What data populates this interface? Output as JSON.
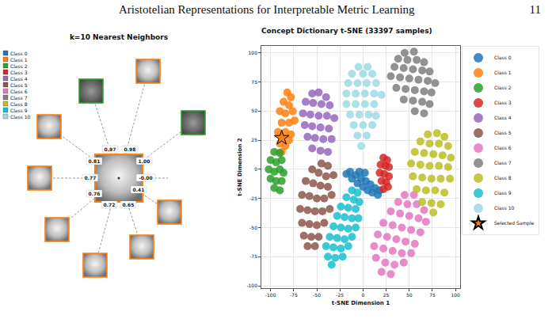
{
  "header": {
    "title": "Aristotelian Representations for Interpretable Metric Learning",
    "page": "11"
  },
  "neighbors_panel": {
    "title": "k=10 Nearest Neighbors",
    "legend": [
      {
        "label": "Class 0",
        "color": "#1f77b4"
      },
      {
        "label": "Class 1",
        "color": "#ff7f0e"
      },
      {
        "label": "Class 2",
        "color": "#2ca02c"
      },
      {
        "label": "Class 3",
        "color": "#d62728"
      },
      {
        "label": "Class 4",
        "color": "#9467bd"
      },
      {
        "label": "Class 5",
        "color": "#8c564b"
      },
      {
        "label": "Class 6",
        "color": "#e377c2"
      },
      {
        "label": "Class 7",
        "color": "#7f7f7f"
      },
      {
        "label": "Class 8",
        "color": "#bcbd22"
      },
      {
        "label": "Class 9",
        "color": "#17becf"
      },
      {
        "label": "Class 10",
        "color": "#9edae5"
      }
    ],
    "query": {
      "class": "Class 1"
    },
    "neighbors": [
      {
        "similarity": "0.97",
        "class": "Class 2"
      },
      {
        "similarity": "0.98",
        "class": "Class 1"
      },
      {
        "similarity": "0.81",
        "class": "Class 1"
      },
      {
        "similarity": "1.00",
        "class": "Class 2"
      },
      {
        "similarity": "0.77",
        "class": "Class 1"
      },
      {
        "similarity": "-0.00"
      },
      {
        "similarity": "0.41",
        "class": "Class 1"
      },
      {
        "similarity": "0.76",
        "class": "Class 1"
      },
      {
        "similarity": "0.72",
        "class": "Class 1"
      },
      {
        "similarity": "0.65",
        "class": "Class 1"
      }
    ]
  },
  "chart_data": {
    "type": "scatter",
    "title": "Concept Dictionary t-SNE (33397 samples)",
    "x_label": "t-SNE Dimension 1",
    "y_label": "t-SNE Dimension 2",
    "xlim": [
      -110,
      105
    ],
    "ylim": [
      -102,
      106
    ],
    "xticks": [
      -100,
      -75,
      -50,
      -25,
      0,
      25,
      50,
      75,
      100
    ],
    "yticks": [
      -100,
      -75,
      -50,
      -25,
      0,
      25,
      50,
      75,
      100
    ],
    "grid": true,
    "legend": "right",
    "series": [
      {
        "name": "Class 0",
        "color": "#1f77b4",
        "x": [
          -18,
          -14,
          -12,
          -8,
          -6,
          -2,
          0,
          3,
          5,
          8,
          10,
          13,
          16,
          18,
          -4,
          2
        ],
        "y": [
          -4,
          -2,
          -8,
          -5,
          -12,
          -8,
          -15,
          -10,
          -18,
          -13,
          -20,
          -16,
          -22,
          -18,
          -2,
          -3
        ]
      },
      {
        "name": "Class 1",
        "color": "#ff7f0e",
        "x": [
          -82,
          -78,
          -86,
          -80,
          -90,
          -84,
          -76,
          -88,
          -80,
          -74,
          -92,
          -84,
          -78,
          -90,
          -84,
          -80,
          -88
        ],
        "y": [
          66,
          62,
          58,
          55,
          50,
          48,
          50,
          40,
          40,
          42,
          32,
          32,
          30,
          22,
          20,
          25,
          15
        ]
      },
      {
        "name": "Class 2",
        "color": "#2ca02c",
        "x": [
          -96,
          -90,
          -100,
          -94,
          -88,
          -102,
          -96,
          -90,
          -86,
          -100,
          -94,
          -88,
          -96,
          -90
        ],
        "y": [
          15,
          14,
          8,
          6,
          8,
          0,
          -2,
          0,
          -3,
          -8,
          -10,
          -10,
          -16,
          -18
        ]
      },
      {
        "name": "Class 3",
        "color": "#d62728",
        "x": [
          22,
          26,
          19,
          24,
          28,
          18,
          23,
          28,
          20,
          25,
          22,
          27
        ],
        "y": [
          10,
          8,
          4,
          3,
          2,
          -3,
          -4,
          -6,
          -10,
          -11,
          -17,
          -15
        ]
      },
      {
        "name": "Class 4",
        "color": "#9467bd",
        "x": [
          -55,
          -48,
          -40,
          -62,
          -54,
          -45,
          -36,
          -65,
          -57,
          -48,
          -39,
          -31,
          -63,
          -55,
          -46,
          -37,
          -60,
          -52,
          -43,
          -34,
          -55,
          -46,
          -38
        ],
        "y": [
          65,
          66,
          62,
          58,
          57,
          56,
          55,
          48,
          47,
          46,
          46,
          44,
          38,
          37,
          36,
          35,
          28,
          27,
          26,
          26,
          18,
          16,
          15
        ]
      },
      {
        "name": "Class 5",
        "color": "#8c564b",
        "x": [
          -45,
          -38,
          -55,
          -48,
          -40,
          -32,
          -62,
          -54,
          -46,
          -38,
          -66,
          -58,
          -50,
          -42,
          -34,
          -68,
          -60,
          -52,
          -44,
          -36,
          -66,
          -58,
          -50,
          -42,
          -64,
          -56,
          -48,
          -60,
          -52
        ],
        "y": [
          5,
          3,
          0,
          -3,
          -6,
          -5,
          -10,
          -12,
          -14,
          -15,
          -22,
          -23,
          -25,
          -25,
          -22,
          -34,
          -35,
          -36,
          -36,
          -34,
          -46,
          -47,
          -48,
          -46,
          -57,
          -58,
          -58,
          -66,
          -66
        ]
      },
      {
        "name": "Class 6",
        "color": "#e377c2",
        "x": [
          45,
          55,
          38,
          48,
          58,
          66,
          30,
          40,
          50,
          60,
          68,
          22,
          32,
          42,
          52,
          62,
          16,
          26,
          36,
          46,
          56,
          12,
          22,
          32,
          42,
          52,
          14,
          24,
          34,
          44,
          20,
          30
        ],
        "y": [
          -22,
          -22,
          -28,
          -30,
          -30,
          -35,
          -36,
          -38,
          -40,
          -42,
          -45,
          -46,
          -48,
          -50,
          -52,
          -54,
          -56,
          -58,
          -60,
          -62,
          -64,
          -66,
          -68,
          -70,
          -72,
          -72,
          -76,
          -80,
          -82,
          -80,
          -88,
          -90
        ]
      },
      {
        "name": "Class 7",
        "color": "#7f7f7f",
        "x": [
          45,
          55,
          38,
          48,
          58,
          66,
          34,
          44,
          54,
          64,
          72,
          30,
          40,
          50,
          60,
          70,
          78,
          36,
          46,
          56,
          66,
          74,
          44,
          54,
          64,
          72,
          56,
          66
        ],
        "y": [
          100,
          101,
          95,
          94,
          94,
          92,
          88,
          87,
          86,
          85,
          84,
          80,
          79,
          78,
          77,
          76,
          74,
          70,
          69,
          68,
          67,
          66,
          60,
          59,
          58,
          56,
          50,
          48
        ]
      },
      {
        "name": "Class 8",
        "color": "#bcbd22",
        "x": [
          70,
          80,
          88,
          62,
          72,
          82,
          92,
          56,
          66,
          76,
          86,
          95,
          52,
          62,
          72,
          82,
          92,
          54,
          64,
          74,
          84,
          94,
          58,
          68,
          78,
          88,
          64,
          74,
          84,
          76
        ],
        "y": [
          30,
          31,
          28,
          24,
          22,
          22,
          20,
          15,
          14,
          13,
          12,
          10,
          5,
          4,
          3,
          3,
          2,
          -6,
          -7,
          -8,
          -8,
          -8,
          -17,
          -18,
          -18,
          -20,
          -28,
          -29,
          -30,
          -37
        ]
      },
      {
        "name": "Class 9",
        "color": "#17becf",
        "x": [
          -12,
          -6,
          -18,
          -10,
          -4,
          -24,
          -16,
          -8,
          -28,
          -20,
          -12,
          -5,
          -32,
          -24,
          -16,
          -8,
          -36,
          -28,
          -20,
          -12,
          -40,
          -32,
          -24,
          -16,
          -38,
          -30,
          -22,
          -34
        ],
        "y": [
          -18,
          -20,
          -24,
          -26,
          -28,
          -32,
          -33,
          -34,
          -40,
          -41,
          -42,
          -42,
          -49,
          -50,
          -51,
          -50,
          -58,
          -59,
          -60,
          -58,
          -66,
          -67,
          -68,
          -66,
          -75,
          -76,
          -75,
          -82
        ]
      },
      {
        "name": "Class 10",
        "color": "#9edae5",
        "x": [
          -5,
          5,
          -12,
          0,
          10,
          -16,
          -6,
          4,
          14,
          -18,
          -8,
          2,
          12,
          20,
          -18,
          -8,
          2,
          12,
          -14,
          -4,
          6,
          14,
          -10,
          0,
          10,
          -6,
          4,
          -2
        ],
        "y": [
          88,
          88,
          82,
          82,
          82,
          74,
          74,
          74,
          74,
          65,
          65,
          65,
          65,
          64,
          56,
          56,
          56,
          56,
          47,
          47,
          47,
          46,
          38,
          38,
          38,
          29,
          29,
          20
        ]
      },
      {
        "name": "Selected Sample",
        "color": "#ff7f0e",
        "marker": "star",
        "x": [
          -88
        ],
        "y": [
          27
        ]
      }
    ]
  }
}
